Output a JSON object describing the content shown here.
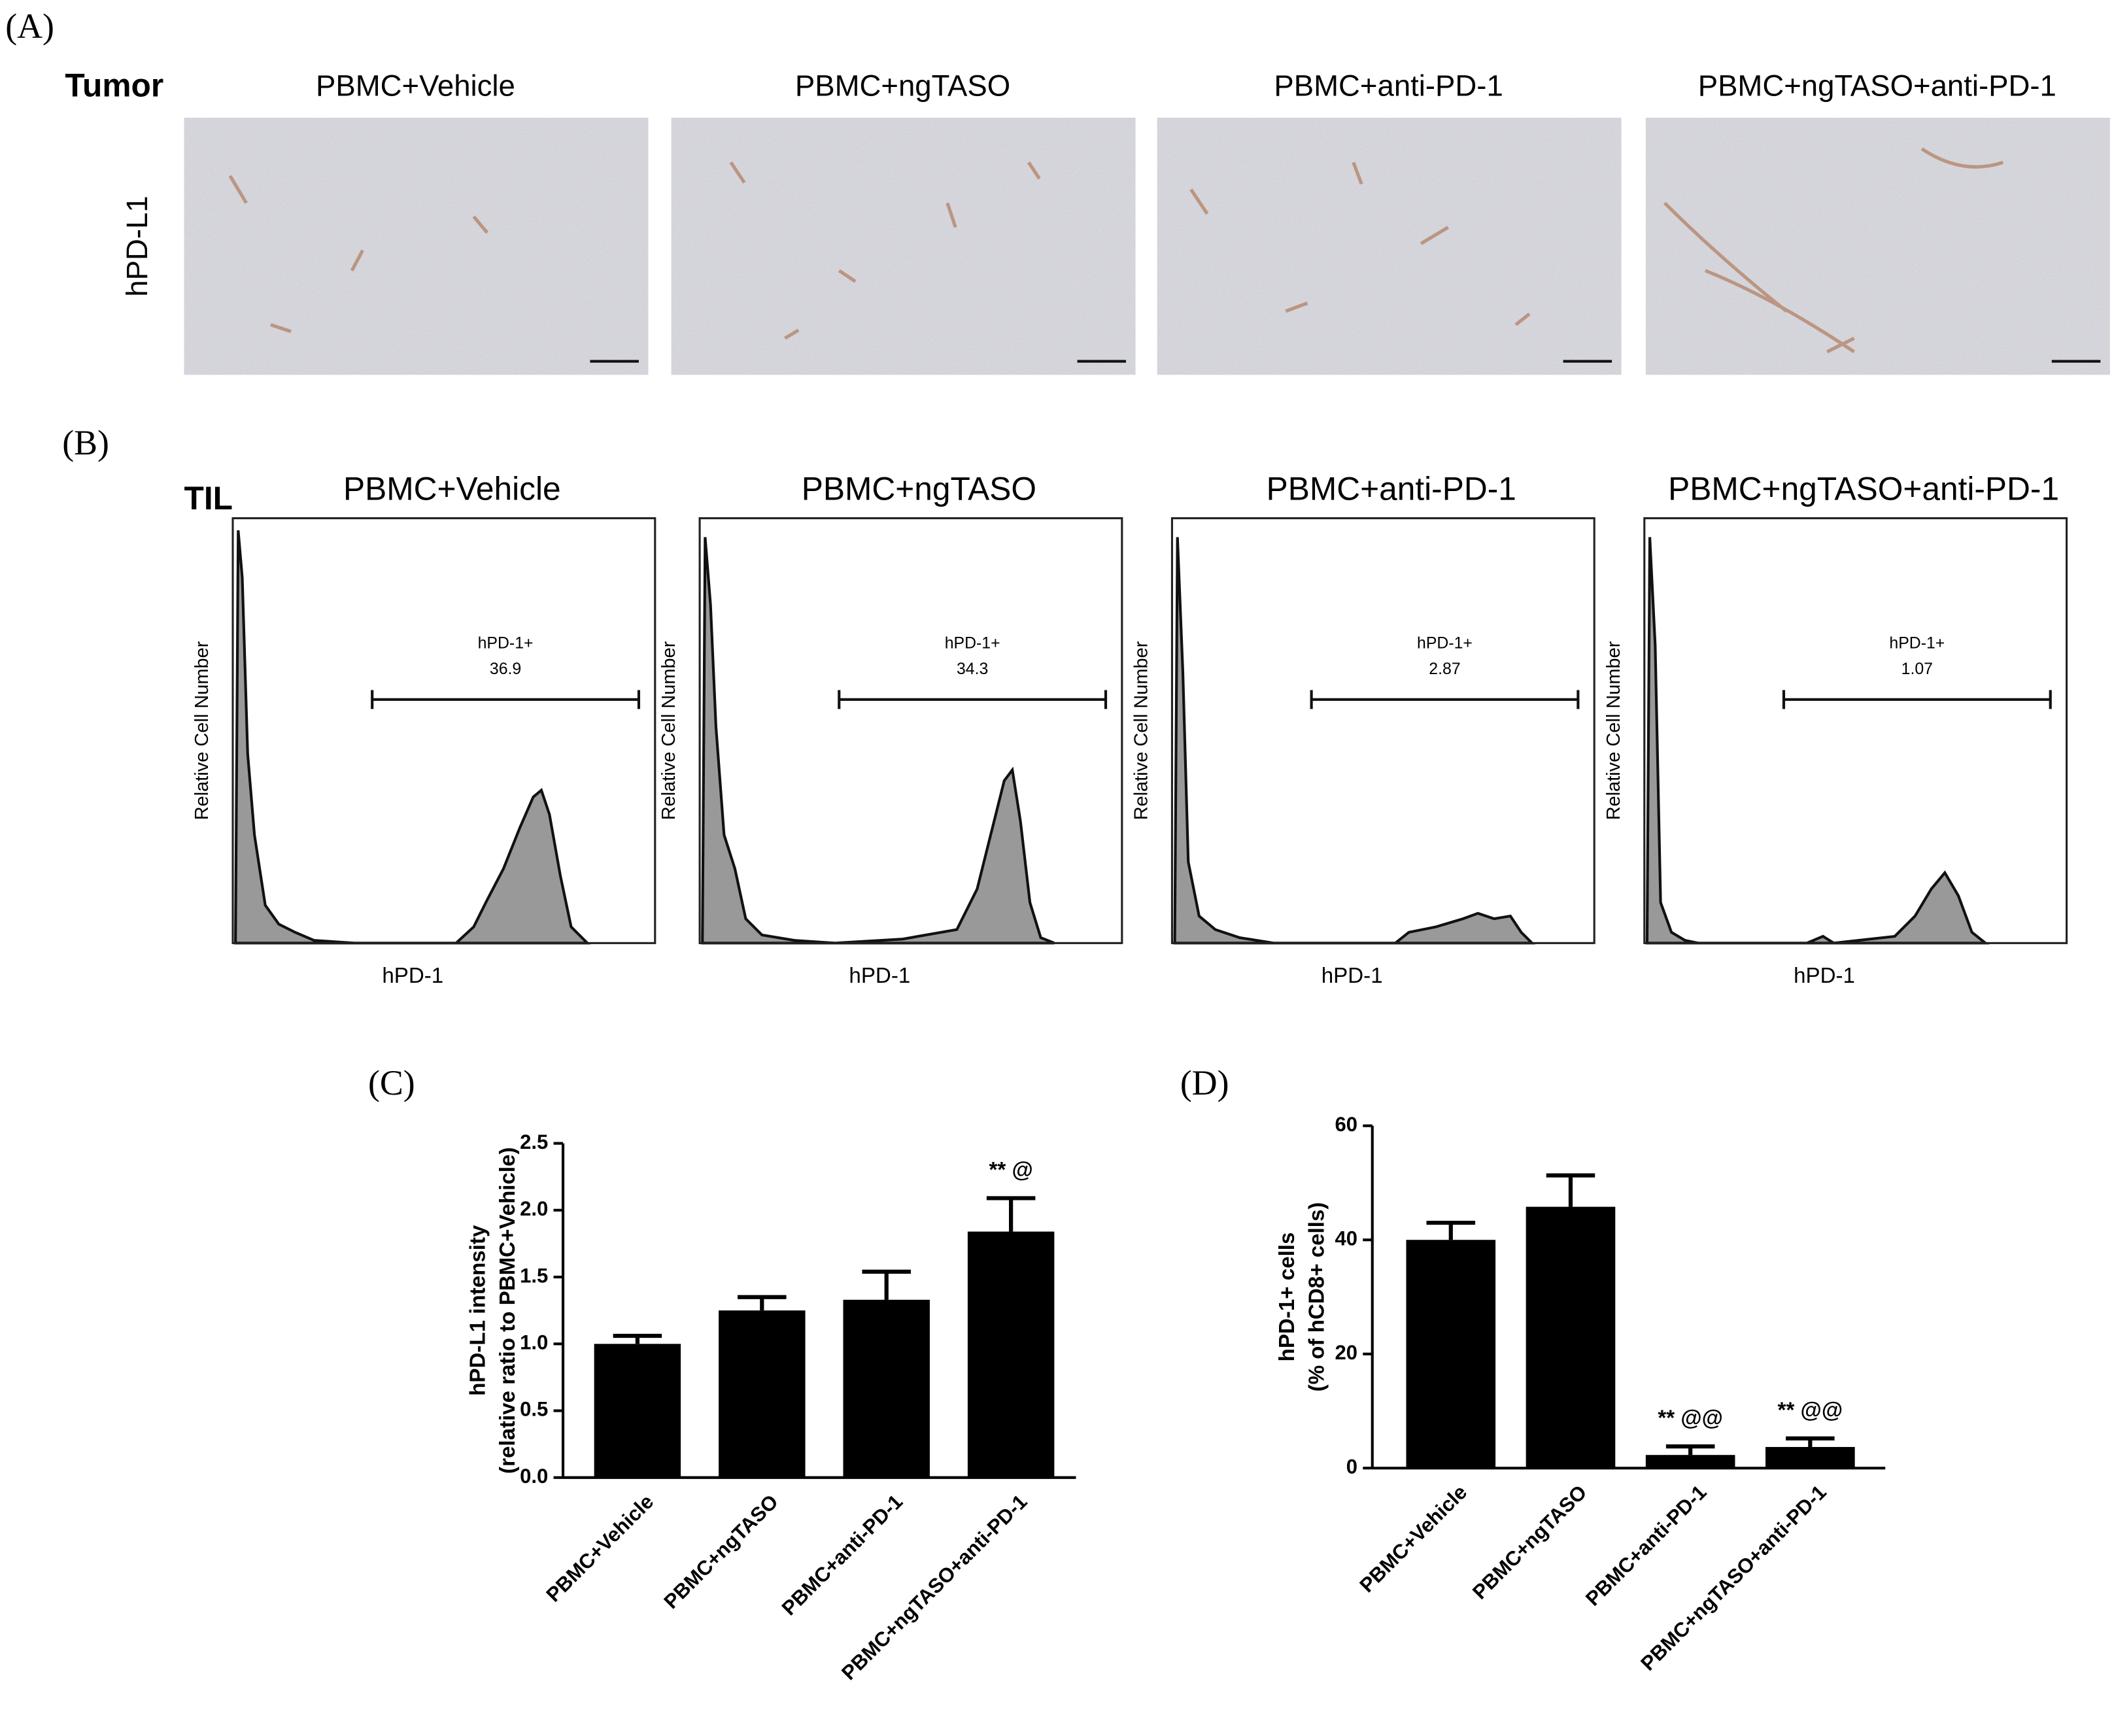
{
  "panel_a": {
    "label": "(A)",
    "row_label": "Tumor",
    "stain": "hPD-L1",
    "titles": [
      "PBMC+Vehicle",
      "PBMC+ngTASO",
      "PBMC+anti-PD-1",
      "PBMC+ngTASO+anti-PD-1"
    ]
  },
  "panel_b": {
    "label": "(B)",
    "row_label": "TIL",
    "plots": [
      {
        "title": "PBMC+Vehicle",
        "gate": "hPD-1+",
        "value": 36.9,
        "y_label": "Relative Cell Number",
        "x_label": "hPD-1"
      },
      {
        "title": "PBMC+ngTASO",
        "gate": "hPD-1+",
        "value": 34.3,
        "y_label": "Relative Cell Number",
        "x_label": "hPD-1"
      },
      {
        "title": "PBMC+anti-PD-1",
        "gate": "hPD-1+",
        "value": 2.87,
        "y_label": "Relative Cell Number",
        "x_label": "hPD-1"
      },
      {
        "title": "PBMC+ngTASO+anti-PD-1",
        "gate": "hPD-1+",
        "value": 1.07,
        "y_label": "Relative Cell Number",
        "x_label": "hPD-1"
      }
    ]
  },
  "chart_data": [
    {
      "type": "bar",
      "panel_label": "(C)",
      "y_label": [
        "hPD-L1 intensity",
        "(relative ratio to PBMC+Vehicle)"
      ],
      "categories": [
        "PBMC+Vehicle",
        "PBMC+ngTASO",
        "PBMC+anti-PD-1",
        "PBMC+ngTASO+anti-PD-1"
      ],
      "values": [
        1.0,
        1.25,
        1.33,
        1.84
      ],
      "errors": [
        0.06,
        0.1,
        0.21,
        0.25
      ],
      "annotations": [
        null,
        null,
        null,
        "** @"
      ],
      "color": "#000000",
      "ylim": [
        0,
        2.5
      ],
      "yticks": [
        {
          "value": 0,
          "label": "0.0"
        },
        {
          "value": 0.5,
          "label": "0.5"
        },
        {
          "value": 1,
          "label": "1.0"
        },
        {
          "value": 1.5,
          "label": "1.5"
        },
        {
          "value": 2,
          "label": "2.0"
        },
        {
          "value": 2.5,
          "label": "2.5"
        }
      ]
    },
    {
      "type": "bar",
      "panel_label": "(D)",
      "y_label": [
        "hPD-1+ cells",
        "(% of hCD8+ cells)"
      ],
      "categories": [
        "PBMC+Vehicle",
        "PBMC+ngTASO",
        "PBMC+anti-PD-1",
        "PBMC+ngTASO+anti-PD-1"
      ],
      "values": [
        40,
        45.8,
        2.3,
        3.7
      ],
      "errors": [
        3,
        5.5,
        1.5,
        1.5
      ],
      "annotations": [
        null,
        null,
        "** @@",
        "** @@"
      ],
      "color": "#000000",
      "ylim": [
        0,
        60
      ],
      "yticks": [
        0,
        20,
        40,
        60
      ]
    }
  ]
}
